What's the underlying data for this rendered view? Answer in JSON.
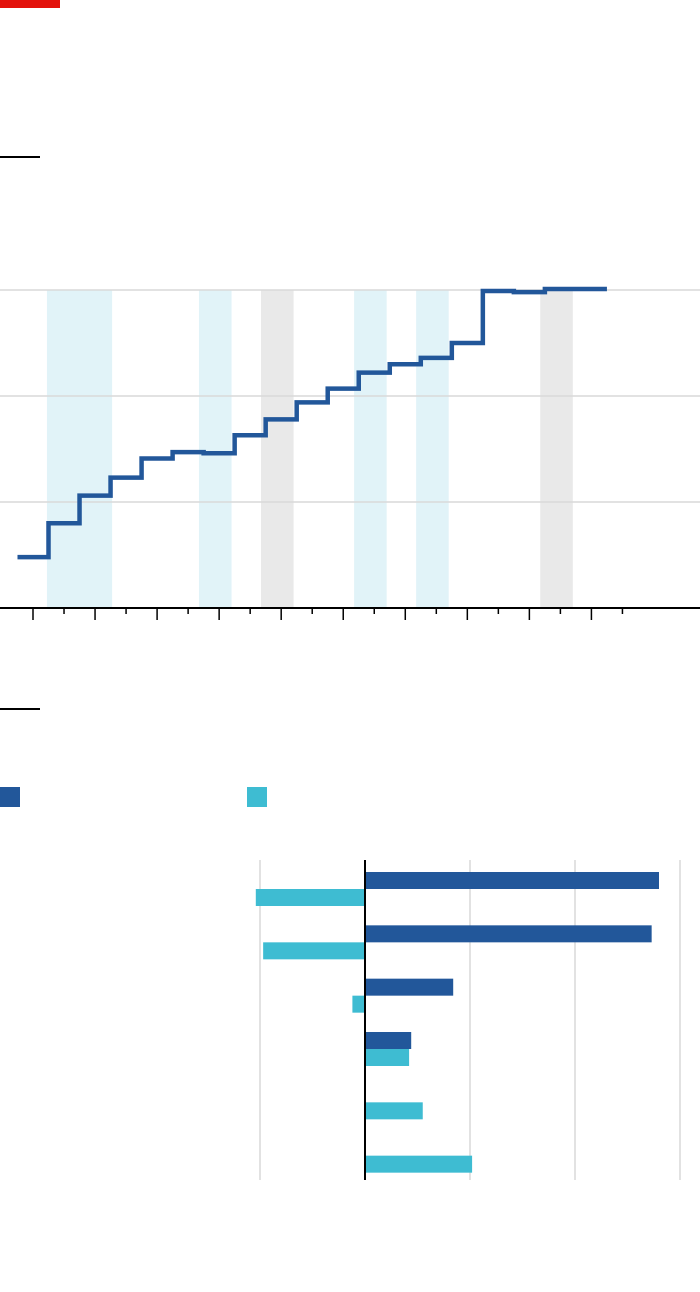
{
  "brand": {
    "color": "#e3120b"
  },
  "colors": {
    "line": "#22579a",
    "shade_light": "#e1f3f8",
    "shade_grey": "#e9e9e9",
    "grid": "#d9d9d9",
    "axis": "#000000",
    "bar_dark": "#22579a",
    "bar_light": "#3ebcd2"
  },
  "chart_data": [
    {
      "type": "line",
      "interpolation": "step",
      "title": "",
      "xlabel": "",
      "ylabel": "",
      "x_ticks": [
        1,
        2,
        3,
        4,
        5,
        6,
        7,
        8,
        9,
        10,
        11,
        12,
        13,
        14,
        15,
        16,
        17,
        18,
        19,
        20
      ],
      "xlim": [
        1,
        22.5
      ],
      "ylim": [
        0,
        3
      ],
      "gridlines_y": [
        1,
        2,
        3
      ],
      "grid": true,
      "shaded_periods": [
        {
          "from": 1.45,
          "to": 3.55,
          "tone": "light"
        },
        {
          "from": 6.35,
          "to": 7.4,
          "tone": "light"
        },
        {
          "from": 8.35,
          "to": 9.4,
          "tone": "grey"
        },
        {
          "from": 11.35,
          "to": 12.4,
          "tone": "light"
        },
        {
          "from": 13.35,
          "to": 14.4,
          "tone": "light"
        },
        {
          "from": 17.35,
          "to": 18.4,
          "tone": "grey"
        }
      ],
      "series": [
        {
          "x": [
            1,
            2,
            3,
            4,
            5,
            6,
            7,
            8,
            9,
            10,
            11,
            12,
            13,
            14,
            15,
            16,
            17,
            18,
            19
          ],
          "values": [
            0.48,
            0.8,
            1.06,
            1.23,
            1.41,
            1.47,
            1.46,
            1.63,
            1.78,
            1.94,
            2.07,
            2.22,
            2.3,
            2.36,
            2.5,
            2.99,
            2.98,
            3.01,
            3.01
          ]
        }
      ]
    },
    {
      "type": "bar",
      "orientation": "horizontal",
      "title": "",
      "xlabel": "",
      "ylabel": "",
      "categories": [
        "",
        "",
        "",
        "",
        "",
        ""
      ],
      "xlim": [
        -1,
        3
      ],
      "gridlines_x": [
        -1,
        0,
        1,
        2,
        3
      ],
      "legend": {
        "position": "top-left",
        "entries": [
          {
            "color": "#22579a",
            "label": ""
          },
          {
            "color": "#3ebcd2",
            "label": ""
          }
        ]
      },
      "series": [
        {
          "values": [
            2.8,
            2.73,
            0.84,
            0.44,
            null,
            null
          ]
        },
        {
          "values": [
            -1.04,
            -0.97,
            -0.12,
            0.42,
            0.55,
            1.02
          ]
        }
      ]
    }
  ]
}
